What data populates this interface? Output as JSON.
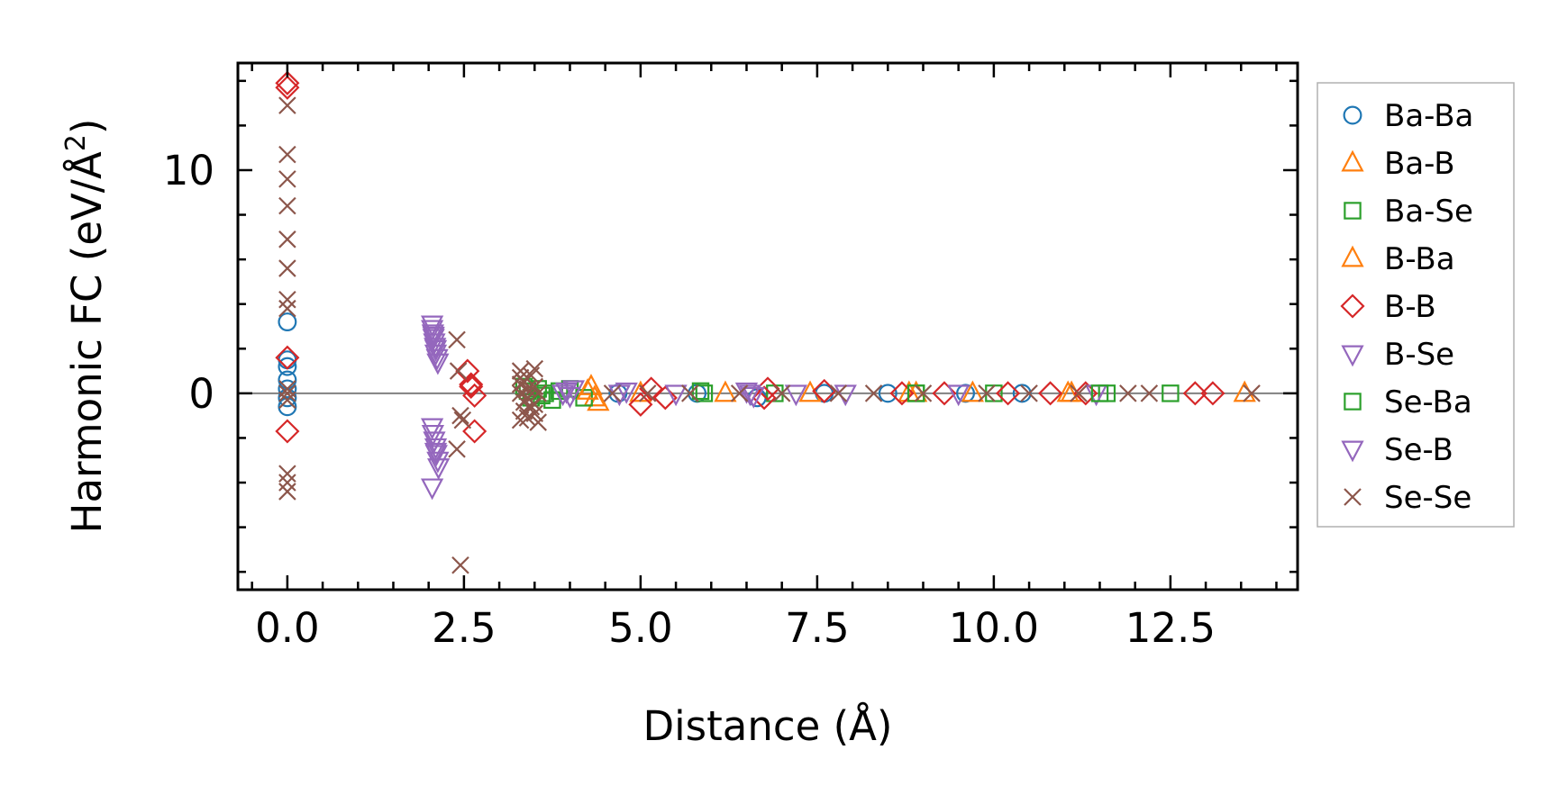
{
  "chart_data": {
    "type": "scatter",
    "title": "",
    "xlabel": "Distance (Å)",
    "ylabel_main": "Harmonic FC (eV/Å",
    "ylabel_sup": "2",
    "ylabel_close": ")",
    "xlim": [
      -0.7,
      14.3
    ],
    "ylim": [
      -8.8,
      14.8
    ],
    "x_ticks": [
      0.0,
      2.5,
      5.0,
      7.5,
      10.0,
      12.5
    ],
    "x_tick_labels": [
      "0.0",
      "2.5",
      "5.0",
      "7.5",
      "10.0",
      "12.5"
    ],
    "y_ticks": [
      0,
      10
    ],
    "y_tick_labels": [
      "0",
      "10"
    ],
    "x_minor_step": 0.5,
    "y_minor_step": 2,
    "zero_line": true,
    "legend_position": "outside-right-top",
    "series": [
      {
        "name": "Ba-Ba",
        "marker": "circle",
        "color": "#1f77b4",
        "x": [
          0.0,
          0.0,
          0.0,
          0.0,
          0.0,
          0.0,
          0.0,
          4.68,
          5.8,
          6.65,
          7.6,
          8.5,
          9.6,
          10.4
        ],
        "y": [
          3.2,
          1.5,
          1.2,
          0.6,
          0.2,
          -0.2,
          -0.6,
          0.0,
          0.0,
          -0.2,
          0.0,
          0.0,
          0.0,
          0.0
        ]
      },
      {
        "name": "Ba-B",
        "marker": "triangle-up",
        "color": "#ff7f0e",
        "x": [
          4.3,
          4.35,
          4.4,
          5.0,
          6.2,
          7.4,
          8.8,
          9.7,
          11.05,
          13.55
        ],
        "y": [
          0.3,
          -0.2,
          -0.4,
          0.0,
          0.0,
          0.0,
          0.0,
          0.0,
          0.0,
          0.0
        ]
      },
      {
        "name": "Ba-Se",
        "marker": "square",
        "color": "#2ca02c",
        "x": [
          3.35,
          3.45,
          3.55,
          3.65,
          3.75,
          3.85,
          4.0,
          4.2,
          5.85,
          6.9,
          8.9,
          10.0,
          11.6,
          12.5
        ],
        "y": [
          0.3,
          -0.2,
          0.2,
          0.0,
          -0.3,
          0.1,
          0.2,
          -0.2,
          0.1,
          0.0,
          0.0,
          0.0,
          0.0,
          0.0
        ]
      },
      {
        "name": "B-Ba",
        "marker": "triangle-up",
        "color": "#ff7f0e",
        "x": [
          4.25,
          8.9,
          11.1
        ],
        "y": [
          0.1,
          0.0,
          0.0
        ]
      },
      {
        "name": "B-B",
        "marker": "diamond",
        "color": "#d62728",
        "x": [
          0.0,
          0.0,
          0.0,
          0.0,
          2.55,
          2.6,
          2.6,
          2.65,
          2.65,
          5.0,
          5.15,
          5.35,
          6.75,
          6.8,
          7.6,
          8.7,
          9.3,
          10.2,
          10.8,
          11.3,
          12.85,
          13.1
        ],
        "y": [
          13.9,
          13.7,
          1.6,
          -1.7,
          1.0,
          0.4,
          0.3,
          -0.1,
          -1.7,
          -0.5,
          0.2,
          -0.2,
          -0.2,
          0.2,
          0.1,
          0.0,
          0.0,
          0.0,
          0.0,
          0.0,
          0.0,
          0.0
        ]
      },
      {
        "name": "B-Se",
        "marker": "triangle-down",
        "color": "#9467bd",
        "x": [
          2.05,
          2.05,
          2.06,
          2.07,
          2.08,
          2.09,
          2.1,
          2.1,
          2.12,
          2.13,
          2.05,
          2.06,
          2.08,
          2.1,
          2.11,
          2.13,
          2.14,
          2.05,
          3.95,
          4.0,
          4.05,
          4.7,
          4.8,
          5.5,
          6.5,
          6.6,
          7.2,
          7.9,
          9.5,
          11.45
        ],
        "y": [
          3.1,
          2.9,
          2.7,
          2.5,
          2.3,
          2.1,
          2.0,
          1.8,
          1.6,
          1.4,
          -1.5,
          -1.8,
          -2.1,
          -2.4,
          -2.7,
          -3.0,
          -3.3,
          -4.2,
          0.1,
          -0.1,
          0.2,
          0.0,
          0.1,
          0.0,
          0.1,
          -0.1,
          0.0,
          0.0,
          0.0,
          0.0
        ]
      },
      {
        "name": "Se-Ba",
        "marker": "square",
        "color": "#2ca02c",
        "x": [
          3.4,
          3.6,
          5.9,
          8.9,
          11.5
        ],
        "y": [
          0.1,
          -0.1,
          0.0,
          0.0,
          0.0
        ]
      },
      {
        "name": "Se-B",
        "marker": "triangle-down",
        "color": "#9467bd",
        "x": [
          2.07,
          2.1,
          3.9,
          6.55
        ],
        "y": [
          2.6,
          -2.6,
          0.0,
          0.0
        ]
      },
      {
        "name": "Se-Se",
        "marker": "x",
        "color": "#8c564b",
        "x": [
          0.0,
          0.0,
          0.0,
          0.0,
          0.0,
          0.0,
          0.0,
          0.0,
          0.0,
          0.0,
          0.0,
          0.0,
          0.0,
          0.0,
          2.4,
          2.42,
          2.45,
          2.48,
          2.4,
          2.45,
          3.3,
          3.3,
          3.3,
          3.3,
          3.35,
          3.35,
          3.35,
          3.4,
          3.4,
          3.45,
          3.45,
          3.5,
          3.5,
          3.5,
          3.55,
          3.55,
          3.4,
          3.3,
          3.5,
          4.6,
          5.1,
          5.7,
          6.4,
          7.0,
          7.8,
          8.3,
          9.0,
          9.9,
          10.5,
          11.2,
          11.9,
          12.2,
          13.65
        ],
        "y": [
          12.9,
          10.7,
          9.6,
          8.4,
          6.9,
          5.6,
          4.2,
          3.8,
          0.2,
          0.0,
          -0.3,
          -3.6,
          -4.0,
          -4.4,
          2.4,
          1.0,
          -1.0,
          -1.2,
          -2.5,
          -7.7,
          1.0,
          0.7,
          0.4,
          0.0,
          -0.4,
          -0.8,
          0.5,
          0.2,
          -0.2,
          0.8,
          -0.6,
          1.1,
          0.3,
          -0.5,
          0.0,
          -1.3,
          -1.1,
          -1.2,
          -0.9,
          0.0,
          0.0,
          0.0,
          0.0,
          0.0,
          0.0,
          0.0,
          0.0,
          0.0,
          0.0,
          0.0,
          0.0,
          0.0,
          0.0
        ]
      }
    ]
  }
}
